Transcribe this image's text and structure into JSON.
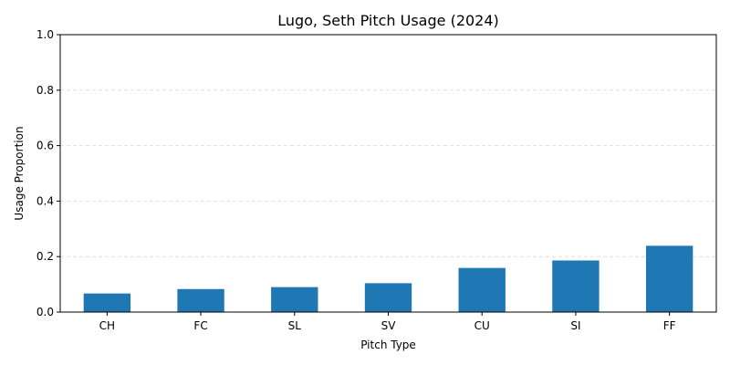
{
  "chart_data": {
    "type": "bar",
    "title": "Lugo, Seth Pitch Usage (2024)",
    "xlabel": "Pitch Type",
    "ylabel": "Usage Proportion",
    "categories": [
      "CH",
      "FC",
      "SL",
      "SV",
      "CU",
      "SI",
      "FF"
    ],
    "values": [
      0.067,
      0.083,
      0.09,
      0.104,
      0.159,
      0.186,
      0.239
    ],
    "ylim": [
      0,
      1.0
    ],
    "yticks": [
      0.0,
      0.2,
      0.4,
      0.6,
      0.8,
      1.0
    ],
    "ytick_labels": [
      "0.0",
      "0.2",
      "0.4",
      "0.6",
      "0.8",
      "1.0"
    ],
    "grid": "y-dashed",
    "bar_color": "#1f77b4",
    "grid_color": "#d9d9d9",
    "legend": "none"
  }
}
